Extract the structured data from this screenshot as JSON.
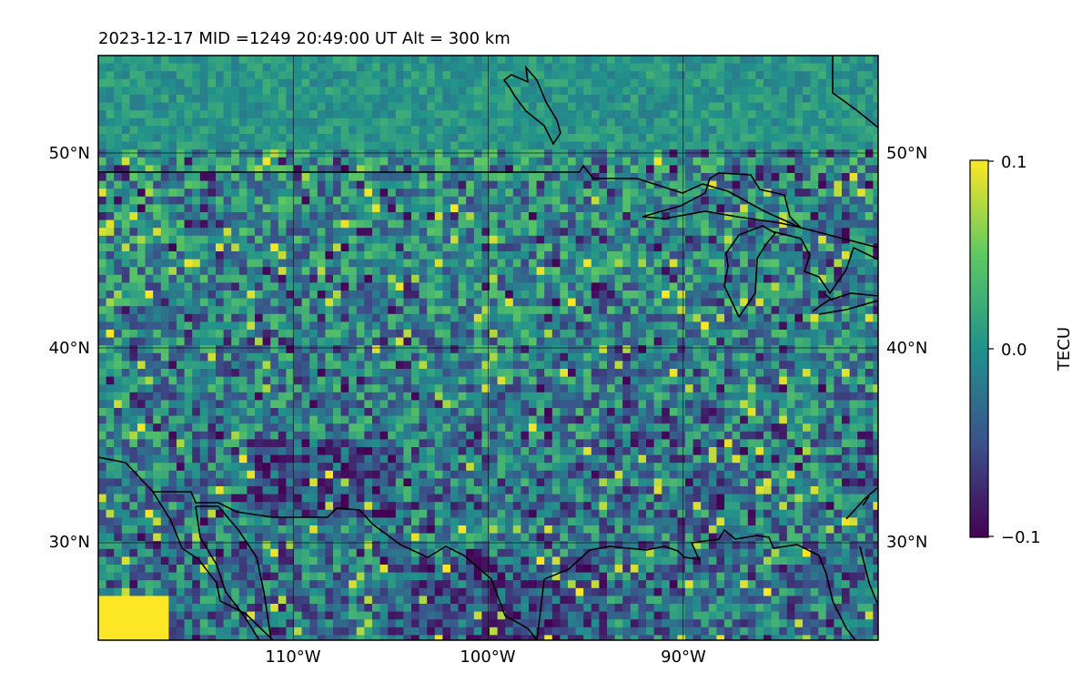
{
  "title": "2023-12-17  MID =1249    20:49:00  UT  Alt = 300 km",
  "map": {
    "lat_labels": [
      "50°N",
      "40°N",
      "30°N"
    ],
    "lon_labels": [
      "110°W",
      "100°W",
      "90°W"
    ],
    "lat_values": [
      50,
      40,
      30
    ],
    "lon_values": [
      -110,
      -100,
      -90
    ],
    "extent": {
      "lon_min": -120,
      "lon_max": -80,
      "lat_min": 25,
      "lat_max": 55
    },
    "gridlines": true,
    "features": [
      "coastlines",
      "us-canada-border",
      "us-mexico-border",
      "great-lakes"
    ]
  },
  "colorbar": {
    "label": "TECU",
    "ticks": [
      "0.1",
      "0.0",
      "−0.1"
    ],
    "tick_values": [
      0.1,
      0.0,
      -0.1
    ],
    "min": -0.1,
    "max": 0.1,
    "colormap": "viridis",
    "colors": [
      "#440154",
      "#3b528b",
      "#21918c",
      "#5ec962",
      "#fde725"
    ]
  }
}
